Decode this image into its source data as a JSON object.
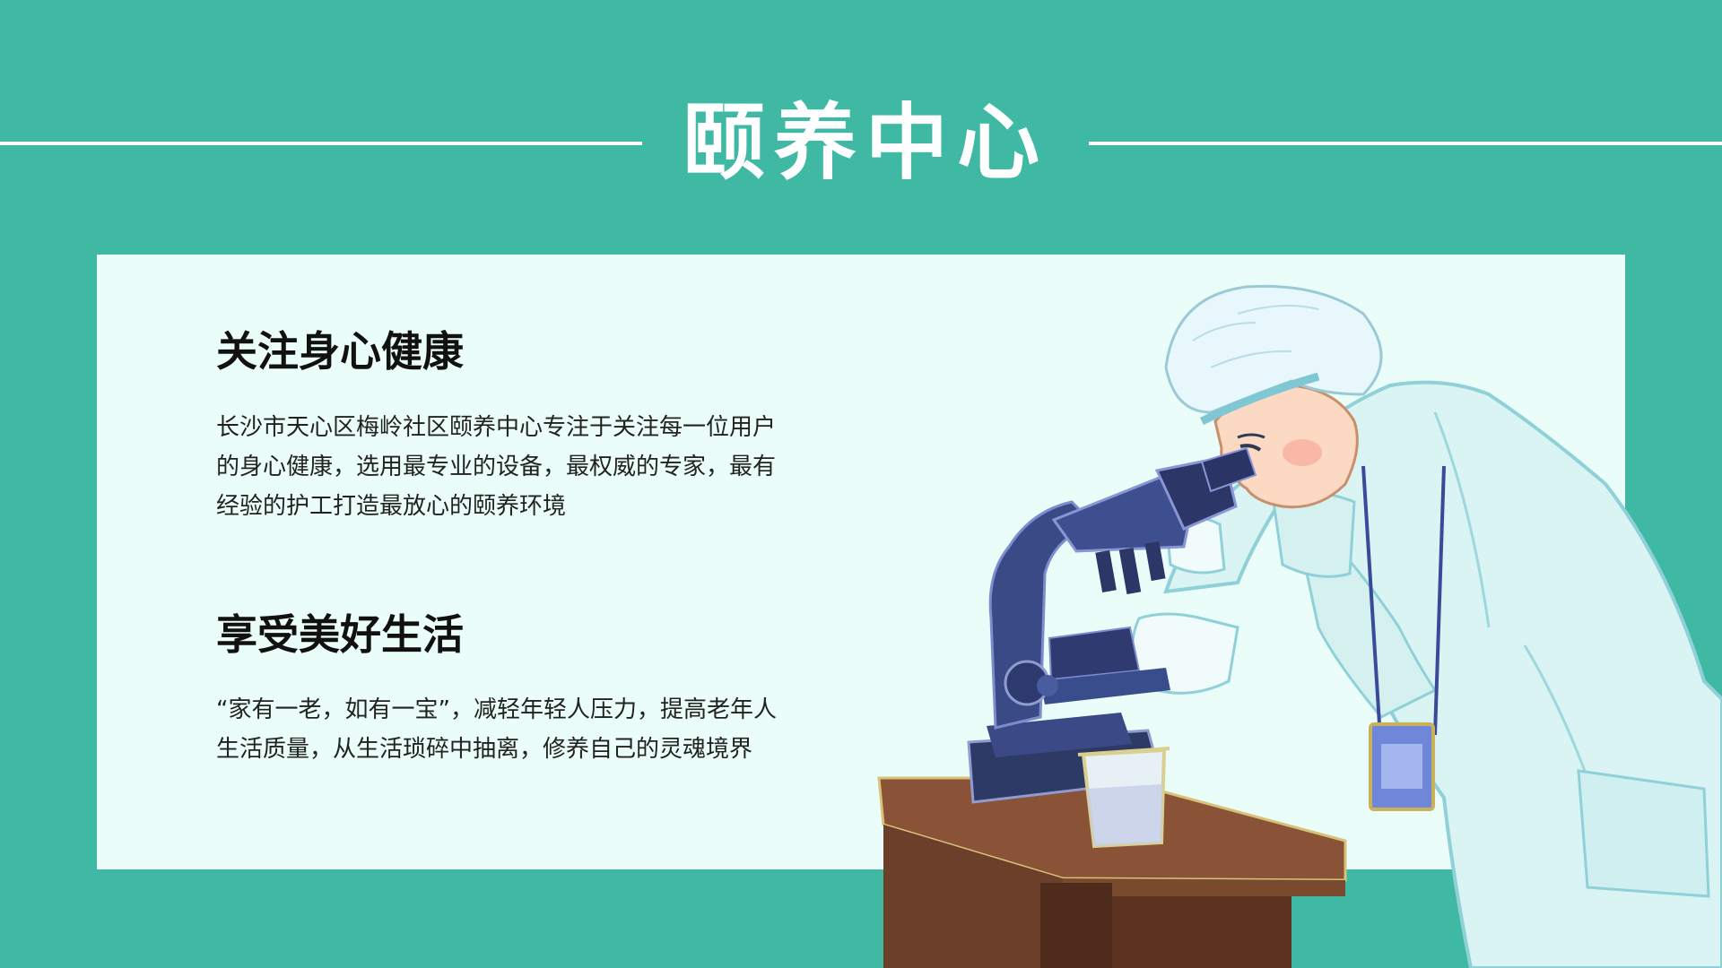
{
  "header": {
    "title": "颐养中心"
  },
  "sections": [
    {
      "heading": "关注身心健康",
      "body": "长沙市天心区梅岭社区颐养中心专注于关注每一位用户的身心健康，选用最专业的设备，最权威的专家，最有经验的护工打造最放心的颐养环境"
    },
    {
      "heading": "享受美好生活",
      "body": "“家有一老，如有一宝”，减轻年轻人压力，提高老年人生活质量，从生活琐碎中抽离，修养自己的灵魂境界"
    }
  ],
  "colors": {
    "background": "#40b9a4",
    "card": "#eafdf8",
    "title": "#ffffff",
    "text": "#111111"
  }
}
